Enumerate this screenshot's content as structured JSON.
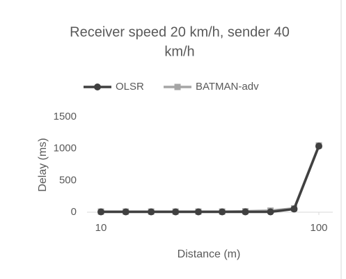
{
  "chart_data": {
    "type": "line",
    "title": "Receiver speed 20 km/h, sender 40",
    "title_line2": "km/h",
    "x_label": "Distance (m)",
    "y_label": "Delay (ms)",
    "x": [
      10,
      13,
      17,
      22,
      28,
      36,
      46,
      60,
      77,
      100
    ],
    "series": [
      {
        "name": "OLSR",
        "color": "#404040",
        "marker": "circle",
        "values": [
          5,
          5,
          5,
          5,
          5,
          5,
          5,
          5,
          50,
          1040
        ]
      },
      {
        "name": "BATMAN-adv",
        "color": "#a5a5a5",
        "marker": "square",
        "values": [
          10,
          10,
          10,
          10,
          10,
          10,
          15,
          25,
          60,
          1050
        ]
      }
    ],
    "xlim": [
      10,
      100
    ],
    "xticks": [
      10,
      100
    ],
    "xscale": "log",
    "ylim": [
      0,
      1500
    ],
    "yticks": [
      0,
      500,
      1000,
      1500
    ],
    "grid": false,
    "legend": "top"
  }
}
